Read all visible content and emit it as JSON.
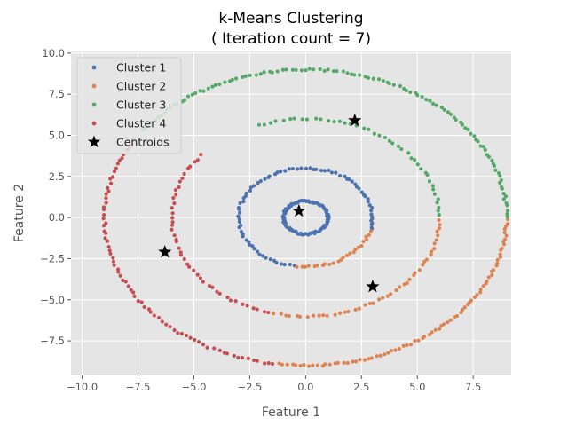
{
  "chart_data": {
    "type": "scatter",
    "title": "k-Means Clustering",
    "subtitle": "( Iteration count = 7)",
    "xlabel": "Feature 1",
    "ylabel": "Feature 2",
    "xlim": [
      -10.5,
      9.2
    ],
    "ylim": [
      -9.6,
      10.1
    ],
    "xticks": [
      -10.0,
      -7.5,
      -5.0,
      -2.5,
      0.0,
      2.5,
      5.0,
      7.5
    ],
    "yticks": [
      -7.5,
      -5.0,
      -2.5,
      0.0,
      2.5,
      5.0,
      7.5,
      10.0
    ],
    "xtick_labels": [
      "−10.0",
      "−7.5",
      "−5.0",
      "−2.5",
      "0.0",
      "2.5",
      "5.0",
      "7.5"
    ],
    "ytick_labels": [
      "−7.5",
      "−5.0",
      "−2.5",
      "0.0",
      "2.5",
      "5.0",
      "7.5",
      "10.0"
    ],
    "grid": true,
    "legend_position": "top-left",
    "background": "#e5e5e5",
    "rings": [
      {
        "r": 1.0
      },
      {
        "r": 3.0
      },
      {
        "r": 6.0
      },
      {
        "r": 9.0
      }
    ],
    "series": [
      {
        "name": "Cluster 1",
        "color": "#4c72b0",
        "arcs": [
          {
            "ring": 0,
            "from": 0,
            "to": 360,
            "n": 80
          },
          {
            "ring": 1,
            "from": 0,
            "to": 103,
            "n": 30
          },
          {
            "ring": 1,
            "from": 103,
            "to": 262,
            "n": 45
          },
          {
            "ring": 1,
            "from": 346,
            "to": 360,
            "n": 6
          }
        ]
      },
      {
        "name": "Cluster 2",
        "color": "#dd8452",
        "arcs": [
          {
            "ring": 1,
            "from": 262,
            "to": 346,
            "n": 24
          },
          {
            "ring": 2,
            "from": 256,
            "to": 360,
            "n": 45
          },
          {
            "ring": 3,
            "from": 262,
            "to": 360,
            "n": 80
          }
        ]
      },
      {
        "name": "Cluster 3",
        "color": "#55a868",
        "arcs": [
          {
            "ring": 2,
            "from": 0,
            "to": 112,
            "n": 42
          },
          {
            "ring": 3,
            "from": 0,
            "to": 145,
            "n": 110
          }
        ]
      },
      {
        "name": "Cluster 4",
        "color": "#c44e52",
        "arcs": [
          {
            "ring": 2,
            "from": 140,
            "to": 256,
            "n": 45
          },
          {
            "ring": 3,
            "from": 148,
            "to": 262,
            "n": 75
          }
        ]
      },
      {
        "name": "Centroids",
        "color": "#000000",
        "marker": "star",
        "x": [
          -0.3,
          2.2,
          -6.3,
          3.0
        ],
        "y": [
          0.4,
          5.9,
          -2.1,
          -4.2
        ]
      }
    ]
  }
}
